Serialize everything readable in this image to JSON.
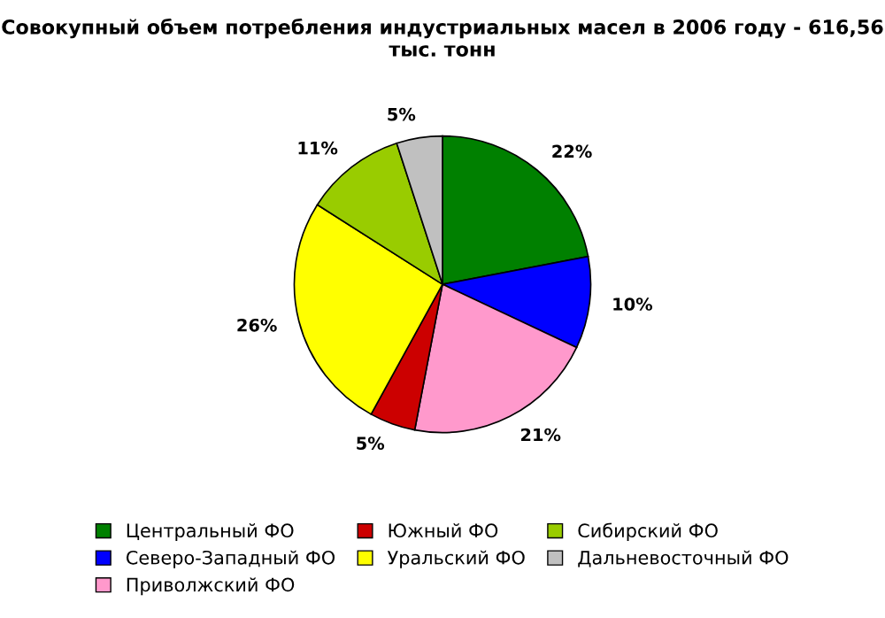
{
  "chart_data": {
    "type": "pie",
    "title": "Совокупный объем потребления индустриальных масел в 2006 году - 616,56 тыс. тонн",
    "categories": [
      "Центральный ФО",
      "Северо-Западный ФО",
      "Приволжский ФО",
      "Южный ФО",
      "Уральский ФО",
      "Сибирский ФО",
      "Дальневосточный ФО"
    ],
    "values": [
      22,
      10,
      21,
      5,
      26,
      11,
      5
    ],
    "value_labels": [
      "22%",
      "10%",
      "21%",
      "5%",
      "26%",
      "11%",
      "5%"
    ],
    "colors": [
      "#008000",
      "#0000ff",
      "#ff99cc",
      "#cc0000",
      "#ffff00",
      "#99cc00",
      "#c0c0c0"
    ],
    "legend": "bottom"
  }
}
